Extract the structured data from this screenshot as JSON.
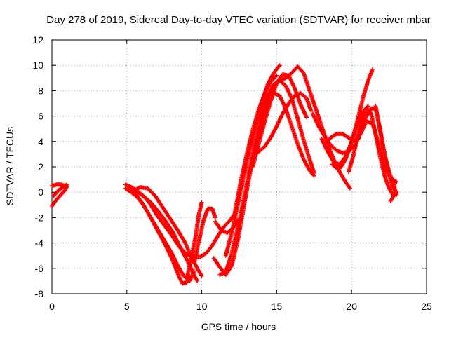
{
  "chart_data": {
    "type": "scatter",
    "title": "Day 278 of 2019, Sidereal Day-to-day VTEC variation (SDTVAR) for receiver mbar",
    "xlabel": "GPS time / hours",
    "ylabel": "SDTVAR / TECUs",
    "xlim": [
      0,
      25
    ],
    "ylim": [
      -8,
      12
    ],
    "xticks": [
      0,
      5,
      10,
      15,
      20,
      25
    ],
    "yticks": [
      -8,
      -6,
      -4,
      -2,
      0,
      2,
      4,
      6,
      8,
      10,
      12
    ],
    "grid": true,
    "marker": "+",
    "color": "#ff0000",
    "series": [
      {
        "x": [
          0.0,
          0.3,
          0.6,
          0.9,
          1.0
        ],
        "y": [
          -1.1,
          -0.6,
          -0.2,
          0.2,
          0.5
        ]
      },
      {
        "x": [
          0.0,
          0.3,
          0.6,
          0.9,
          1.0
        ],
        "y": [
          0.5,
          0.6,
          0.6,
          0.5,
          0.4
        ]
      },
      {
        "x": [
          0.1,
          0.4,
          0.7,
          1.0
        ],
        "y": [
          -0.3,
          0.1,
          0.4,
          0.6
        ]
      },
      {
        "x": [
          4.9,
          5.3,
          5.7,
          6.2,
          6.6,
          7.0,
          7.5,
          8.0,
          8.5,
          9.0,
          9.5,
          9.9,
          10.3,
          10.7,
          11.1,
          11.5,
          11.9,
          12.3
        ],
        "y": [
          0.6,
          0.4,
          0.1,
          -0.4,
          -1.0,
          -1.8,
          -2.6,
          -3.4,
          -4.3,
          -4.9,
          -5.1,
          -5.1,
          -4.8,
          -4.2,
          -3.4,
          -2.7,
          -2.2,
          -1.5
        ]
      },
      {
        "x": [
          4.9,
          5.3,
          5.7,
          6.1,
          6.5,
          7.0,
          7.5,
          8.0,
          8.4,
          8.8,
          9.2,
          9.5
        ],
        "y": [
          0.3,
          0.0,
          -0.4,
          -1.0,
          -1.8,
          -2.8,
          -3.8,
          -4.8,
          -5.8,
          -6.6,
          -7.0,
          -6.2
        ]
      },
      {
        "x": [
          5.1,
          5.5,
          6.0,
          6.5,
          7.0,
          7.5,
          8.0,
          8.4,
          8.7,
          9.0,
          9.2
        ],
        "y": [
          0.5,
          0.0,
          -0.8,
          -1.8,
          -2.9,
          -4.0,
          -5.2,
          -6.4,
          -7.2,
          -7.1,
          -6.6
        ]
      },
      {
        "x": [
          5.4,
          5.9,
          6.4,
          6.9,
          7.4,
          7.9,
          8.4,
          8.9,
          9.3,
          9.7,
          10.0
        ],
        "y": [
          0.1,
          0.4,
          0.3,
          -0.3,
          -1.2,
          -2.1,
          -3.0,
          -4.0,
          -5.1,
          -6.0,
          -6.6
        ]
      },
      {
        "x": [
          5.2,
          5.6,
          6.1,
          6.6,
          7.1,
          7.6,
          8.1,
          8.5,
          9.0,
          9.4,
          9.7
        ],
        "y": [
          0.3,
          0.1,
          -0.3,
          -0.8,
          -1.5,
          -2.3,
          -3.2,
          -4.2,
          -5.3,
          -6.3,
          -7.0
        ]
      },
      {
        "x": [
          9.0,
          9.3,
          9.6,
          9.8,
          10.0
        ],
        "y": [
          -6.8,
          -5.2,
          -3.4,
          -1.8,
          -0.8
        ]
      },
      {
        "x": [
          9.5,
          9.8,
          10.1,
          10.4,
          10.7,
          10.9
        ],
        "y": [
          -5.6,
          -3.9,
          -2.3,
          -1.3,
          -1.3,
          -2.0
        ]
      },
      {
        "x": [
          10.9,
          11.3,
          11.7,
          12.1,
          12.4
        ],
        "y": [
          -2.3,
          -3.0,
          -3.2,
          -2.8,
          -2.2
        ]
      },
      {
        "x": [
          10.8,
          11.2,
          11.6,
          12.0,
          12.4,
          12.8,
          13.2,
          13.6,
          14.0,
          14.4,
          14.8,
          15.2,
          15.6,
          16.0,
          16.4,
          16.8,
          17.2,
          17.5
        ],
        "y": [
          -5.2,
          -5.9,
          -6.5,
          -5.8,
          -3.8,
          -1.2,
          1.4,
          3.6,
          5.4,
          6.8,
          7.8,
          7.6,
          6.6,
          5.2,
          3.8,
          2.6,
          1.7,
          1.3
        ]
      },
      {
        "x": [
          11.2,
          11.6,
          12.0,
          12.4,
          12.8,
          13.2,
          13.6,
          14.0,
          14.4,
          14.8,
          15.2,
          15.6,
          16.0,
          16.4,
          16.8,
          17.2,
          17.5
        ],
        "y": [
          -6.5,
          -6.3,
          -4.8,
          -2.8,
          -0.6,
          1.8,
          4.1,
          6.1,
          7.6,
          8.5,
          8.8,
          8.4,
          7.4,
          5.8,
          4.1,
          2.6,
          1.5
        ]
      },
      {
        "x": [
          11.6,
          12.0,
          12.4,
          12.8,
          13.2,
          13.6,
          14.0,
          14.4,
          14.8,
          15.2
        ],
        "y": [
          -5.0,
          -3.2,
          -1.0,
          1.2,
          3.4,
          5.3,
          7.0,
          8.5,
          9.4,
          10.0
        ]
      },
      {
        "x": [
          12.2,
          12.6,
          13.0,
          13.4,
          13.8,
          14.2,
          14.6,
          15.0
        ],
        "y": [
          -1.6,
          0.8,
          3.0,
          4.9,
          6.5,
          7.8,
          8.7,
          9.2
        ]
      },
      {
        "x": [
          13.4,
          13.8,
          14.2,
          14.6,
          15.0,
          15.4,
          15.8,
          16.2,
          16.6,
          17.0
        ],
        "y": [
          2.0,
          3.8,
          5.6,
          7.2,
          8.6,
          9.3,
          9.2,
          8.2,
          6.9,
          5.9
        ]
      },
      {
        "x": [
          13.8,
          14.2,
          14.6,
          15.0,
          15.4,
          15.8,
          16.2,
          16.6,
          17.0,
          17.3
        ],
        "y": [
          3.2,
          3.6,
          4.3,
          5.2,
          6.2,
          7.0,
          7.6,
          7.8,
          7.4,
          6.4
        ]
      },
      {
        "x": [
          14.0,
          14.4,
          14.8,
          15.2,
          15.6,
          16.0,
          16.4,
          16.8,
          17.2,
          17.6,
          18.0,
          18.4,
          18.8,
          19.2,
          19.6,
          19.9
        ],
        "y": [
          6.0,
          7.4,
          8.4,
          8.8,
          9.0,
          9.4,
          9.9,
          9.4,
          8.0,
          6.6,
          5.2,
          3.8,
          2.6,
          1.6,
          0.8,
          0.3
        ]
      },
      {
        "x": [
          17.4,
          17.8,
          18.2,
          18.6,
          19.0,
          19.4,
          19.8,
          20.2,
          20.5
        ],
        "y": [
          6.2,
          5.2,
          4.4,
          3.7,
          3.3,
          3.1,
          3.2,
          3.7,
          4.3
        ]
      },
      {
        "x": [
          18.0,
          18.4,
          18.8,
          19.2,
          19.6,
          20.0,
          20.4,
          20.8,
          21.1
        ],
        "y": [
          4.2,
          3.2,
          2.4,
          2.2,
          2.8,
          4.0,
          5.4,
          6.4,
          6.8
        ]
      },
      {
        "x": [
          18.2,
          18.6,
          19.0,
          19.4,
          19.8,
          20.2,
          20.6,
          21.0,
          21.4,
          21.8,
          22.2,
          22.6,
          23.0
        ],
        "y": [
          3.8,
          4.3,
          4.6,
          4.6,
          4.3,
          4.0,
          4.6,
          5.6,
          5.4,
          3.8,
          2.0,
          1.1,
          0.8
        ]
      },
      {
        "x": [
          18.7,
          19.0,
          19.3,
          19.6,
          19.9,
          20.2,
          20.5,
          20.8,
          21.1,
          21.4
        ],
        "y": [
          2.2,
          1.9,
          2.0,
          2.6,
          3.6,
          4.8,
          6.2,
          7.6,
          8.8,
          9.7
        ]
      },
      {
        "x": [
          19.8,
          20.1,
          20.4,
          20.7,
          21.0,
          21.3,
          21.6,
          21.9,
          22.2,
          22.5,
          22.8,
          23.0
        ],
        "y": [
          1.6,
          2.8,
          4.4,
          5.8,
          6.6,
          6.2,
          4.6,
          2.8,
          1.3,
          0.3,
          -0.3,
          0.0
        ]
      },
      {
        "x": [
          20.4,
          20.7,
          21.0,
          21.3,
          21.6,
          21.9,
          22.2,
          22.5,
          22.8
        ],
        "y": [
          4.2,
          5.2,
          6.0,
          6.6,
          6.6,
          5.0,
          3.0,
          1.4,
          0.2
        ]
      },
      {
        "x": [
          21.6,
          21.9,
          22.2,
          22.5,
          22.8,
          23.0
        ],
        "y": [
          6.8,
          4.8,
          3.0,
          1.6,
          0.6,
          -0.2
        ]
      },
      {
        "x": [
          22.6,
          22.8,
          22.9
        ],
        "y": [
          -0.7,
          -0.3,
          0.0
        ]
      }
    ]
  }
}
